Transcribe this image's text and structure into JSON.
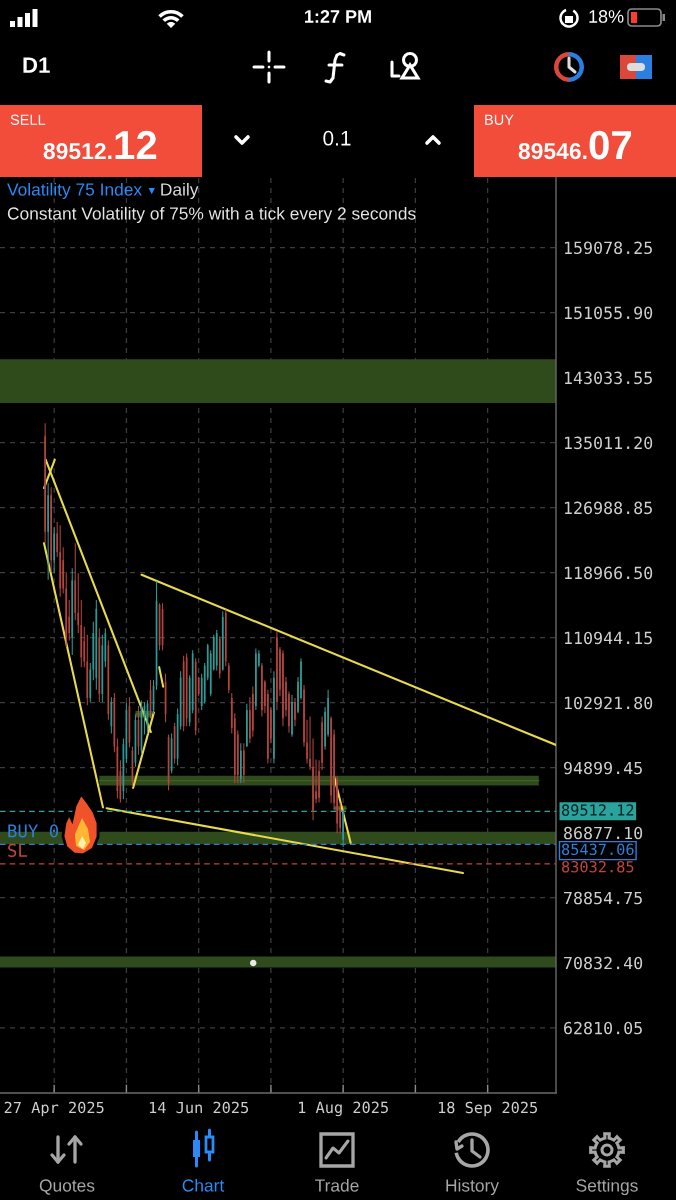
{
  "chart_data": {
    "type": "candlestick",
    "title": "Volatility 75 Index",
    "subtitle": "Constant Volatility of 75% with a tick every 2 seconds",
    "x": [
      "2025-04-24",
      "2025-04-25",
      "2025-04-26",
      "2025-04-27",
      "2025-04-28",
      "2025-04-29",
      "2025-04-30",
      "2025-05-01",
      "2025-05-02",
      "2025-05-03",
      "2025-05-04",
      "2025-05-05",
      "2025-05-06",
      "2025-05-07",
      "2025-05-08",
      "2025-05-09",
      "2025-05-10",
      "2025-05-11",
      "2025-05-12",
      "2025-05-13",
      "2025-05-14",
      "2025-05-15",
      "2025-05-16",
      "2025-05-17",
      "2025-05-18",
      "2025-05-19",
      "2025-05-20",
      "2025-05-21",
      "2025-05-22",
      "2025-05-23",
      "2025-05-24",
      "2025-05-25",
      "2025-05-26",
      "2025-05-27",
      "2025-05-28",
      "2025-05-29",
      "2025-05-30",
      "2025-05-31",
      "2025-06-01",
      "2025-06-02",
      "2025-06-03",
      "2025-06-04",
      "2025-06-05",
      "2025-06-06",
      "2025-06-07",
      "2025-06-08",
      "2025-06-09",
      "2025-06-10",
      "2025-06-11",
      "2025-06-12",
      "2025-06-13",
      "2025-06-14",
      "2025-06-15",
      "2025-06-16",
      "2025-06-17",
      "2025-06-18",
      "2025-06-19",
      "2025-06-20",
      "2025-06-21",
      "2025-06-22",
      "2025-06-23",
      "2025-06-24",
      "2025-06-25",
      "2025-06-26",
      "2025-06-27",
      "2025-06-28",
      "2025-06-29",
      "2025-06-30",
      "2025-07-01",
      "2025-07-02",
      "2025-07-03",
      "2025-07-04",
      "2025-07-05",
      "2025-07-06",
      "2025-07-07",
      "2025-07-08",
      "2025-07-09",
      "2025-07-10",
      "2025-07-11",
      "2025-07-12",
      "2025-07-13",
      "2025-07-14",
      "2025-07-15",
      "2025-07-16",
      "2025-07-17",
      "2025-07-18",
      "2025-07-19",
      "2025-07-20",
      "2025-07-21",
      "2025-07-22",
      "2025-07-23",
      "2025-07-24",
      "2025-07-25",
      "2025-07-26",
      "2025-07-27",
      "2025-07-28",
      "2025-07-29",
      "2025-07-30",
      "2025-07-31",
      "2025-08-01"
    ],
    "ohlc": [
      [
        135800,
        137400,
        122600,
        124000
      ],
      [
        124000,
        130000,
        118100,
        128500
      ],
      [
        128500,
        129500,
        119000,
        120500
      ],
      [
        120500,
        124600,
        118900,
        123800
      ],
      [
        123800,
        125200,
        120900,
        121500
      ],
      [
        121500,
        124800,
        116000,
        117000
      ],
      [
        120500,
        122100,
        116400,
        117000
      ],
      [
        117000,
        119000,
        109800,
        111000
      ],
      [
        113500,
        115600,
        110600,
        111500
      ],
      [
        111000,
        119500,
        108800,
        118000
      ],
      [
        118000,
        122600,
        113100,
        114000
      ],
      [
        114000,
        118900,
        111500,
        112500
      ],
      [
        112500,
        115600,
        107300,
        108500
      ],
      [
        110500,
        112300,
        107300,
        108000
      ],
      [
        108000,
        111300,
        102600,
        103500
      ],
      [
        103500,
        107800,
        103000,
        107000
      ],
      [
        107000,
        112900,
        105700,
        111500
      ],
      [
        106000,
        115600,
        104500,
        114500
      ],
      [
        111000,
        112100,
        103000,
        104000
      ],
      [
        104000,
        111300,
        103000,
        110000
      ],
      [
        108000,
        112100,
        107300,
        111500
      ],
      [
        110000,
        110600,
        100800,
        101500
      ],
      [
        100000,
        103600,
        99100,
        103000
      ],
      [
        103500,
        104100,
        96800,
        97500
      ],
      [
        97500,
        98500,
        91100,
        92000
      ],
      [
        94500,
        95800,
        90600,
        91000
      ],
      [
        92000,
        98500,
        91000,
        97800
      ],
      [
        96000,
        102900,
        95500,
        102000
      ],
      [
        102500,
        103600,
        97400,
        98000
      ],
      [
        97000,
        97500,
        92500,
        93200
      ],
      [
        95500,
        101400,
        95000,
        100800
      ],
      [
        100800,
        102500,
        96500,
        97500
      ],
      [
        97000,
        103200,
        96500,
        102500
      ],
      [
        101000,
        103000,
        99000,
        102500
      ],
      [
        100000,
        103200,
        99100,
        102800
      ],
      [
        104500,
        105700,
        101000,
        101800
      ],
      [
        102000,
        105700,
        101500,
        105000
      ],
      [
        105000,
        117900,
        104500,
        115500
      ],
      [
        115000,
        115200,
        109400,
        110000
      ],
      [
        114500,
        115200,
        109400,
        110000
      ],
      [
        105500,
        106500,
        100500,
        101500
      ],
      [
        98700,
        99000,
        92100,
        93000
      ],
      [
        94500,
        99100,
        94200,
        98500
      ],
      [
        100000,
        100400,
        95400,
        96000
      ],
      [
        96000,
        102200,
        95200,
        101500
      ],
      [
        100000,
        106800,
        99600,
        106000
      ],
      [
        108000,
        108700,
        99400,
        100000
      ],
      [
        108500,
        109000,
        100000,
        101000
      ],
      [
        100500,
        106300,
        100000,
        106000
      ],
      [
        102000,
        109400,
        101600,
        109000
      ],
      [
        108000,
        108400,
        98900,
        99500
      ],
      [
        106000,
        106100,
        103700,
        104000
      ],
      [
        102500,
        106500,
        102000,
        106000
      ],
      [
        103000,
        107800,
        102800,
        107500
      ],
      [
        106000,
        110200,
        105700,
        110000
      ],
      [
        104000,
        109400,
        103700,
        109000
      ],
      [
        107000,
        111300,
        106900,
        111000
      ],
      [
        107500,
        111900,
        106900,
        111500
      ],
      [
        110800,
        111100,
        105900,
        106500
      ],
      [
        107000,
        114200,
        106900,
        113500
      ],
      [
        114000,
        114400,
        107400,
        108000
      ],
      [
        107500,
        107800,
        104100,
        104500
      ],
      [
        103500,
        104100,
        99100,
        99800
      ],
      [
        101000,
        101600,
        93000,
        94000
      ],
      [
        99000,
        99500,
        93000,
        94000
      ],
      [
        93500,
        97900,
        93000,
        97000
      ],
      [
        97000,
        97900,
        93000,
        94000
      ],
      [
        97500,
        102800,
        97500,
        102000
      ],
      [
        102000,
        103600,
        97900,
        98500
      ],
      [
        104000,
        104900,
        98700,
        99500
      ],
      [
        102500,
        109600,
        102000,
        109000
      ],
      [
        107500,
        109400,
        107300,
        109000
      ],
      [
        107500,
        107800,
        101200,
        102000
      ],
      [
        105500,
        105700,
        101600,
        102500
      ],
      [
        104000,
        104500,
        95400,
        96000
      ],
      [
        102000,
        102400,
        97900,
        98500
      ],
      [
        96000,
        106800,
        95400,
        106000
      ],
      [
        111000,
        111700,
        102000,
        103000
      ],
      [
        109500,
        109800,
        103700,
        104500
      ],
      [
        109000,
        109400,
        100000,
        101000
      ],
      [
        105500,
        106100,
        101200,
        102000
      ],
      [
        104000,
        104300,
        99200,
        100000
      ],
      [
        99000,
        103900,
        98700,
        103000
      ],
      [
        103000,
        103500,
        100000,
        100800
      ],
      [
        101800,
        106100,
        101600,
        105500
      ],
      [
        103500,
        108400,
        103300,
        108000
      ],
      [
        104500,
        105100,
        97500,
        98000
      ],
      [
        98000,
        100800,
        95400,
        96000
      ],
      [
        96000,
        101200,
        94600,
        95000
      ],
      [
        95000,
        98500,
        88400,
        89500
      ],
      [
        92000,
        95900,
        90500,
        91000
      ],
      [
        94500,
        95800,
        90600,
        91200
      ],
      [
        100500,
        101200,
        94600,
        95500
      ],
      [
        97500,
        102400,
        97100,
        101800
      ],
      [
        99000,
        104500,
        98700,
        103500
      ],
      [
        101000,
        101200,
        90500,
        91500
      ],
      [
        99000,
        99600,
        89700,
        90500
      ],
      [
        93500,
        93800,
        86800,
        88000
      ],
      [
        90000,
        90500,
        86800,
        87500
      ],
      [
        86000,
        89600,
        85100,
        89500
      ]
    ],
    "colors": [
      "#b5443f",
      "#2e9a96",
      "#b5443f",
      "#2e9a96",
      "#b5443f",
      "#b5443f",
      "#b5443f",
      "#b5443f",
      "#b5443f",
      "#2e9a96",
      "#b5443f",
      "#b5443f",
      "#b5443f",
      "#b5443f",
      "#b5443f",
      "#2e9a96",
      "#2e9a96",
      "#2e9a96",
      "#b5443f",
      "#2e9a96",
      "#2e9a96",
      "#b5443f",
      "#2e9a96",
      "#b5443f",
      "#b5443f",
      "#b5443f",
      "#2e9a96",
      "#2e9a96",
      "#b5443f",
      "#b5443f",
      "#2e9a96",
      "#b5443f",
      "#2e9a96",
      "#2e9a96",
      "#2e9a96",
      "#b5443f",
      "#2e9a96",
      "#2e9a96",
      "#b5443f",
      "#b5443f",
      "#b5443f",
      "#b5443f",
      "#2e9a96",
      "#b5443f",
      "#2e9a96",
      "#2e9a96",
      "#b5443f",
      "#b5443f",
      "#2e9a96",
      "#2e9a96",
      "#b5443f",
      "#b5443f",
      "#2e9a96",
      "#2e9a96",
      "#2e9a96",
      "#2e9a96",
      "#2e9a96",
      "#2e9a96",
      "#b5443f",
      "#2e9a96",
      "#b5443f",
      "#b5443f",
      "#b5443f",
      "#b5443f",
      "#b5443f",
      "#2e9a96",
      "#b5443f",
      "#2e9a96",
      "#b5443f",
      "#b5443f",
      "#2e9a96",
      "#2e9a96",
      "#b5443f",
      "#b5443f",
      "#b5443f",
      "#b5443f",
      "#2e9a96",
      "#b5443f",
      "#b5443f",
      "#b5443f",
      "#b5443f",
      "#b5443f",
      "#2e9a96",
      "#b5443f",
      "#2e9a96",
      "#2e9a96",
      "#b5443f",
      "#b5443f",
      "#b5443f",
      "#b5443f",
      "#b5443f",
      "#b5443f",
      "#b5443f",
      "#2e9a96",
      "#2e9a96",
      "#b5443f",
      "#b5443f",
      "#b5443f",
      "#b5443f",
      "#2e9a96"
    ],
    "series": [
      {
        "type": "line",
        "color": "#e8da4c",
        "x": [
          "2025-04-24T04:00",
          "2025-05-29T03:00"
        ],
        "values": [
          132900,
          99300
        ]
      },
      {
        "type": "line",
        "color": "#e8da4c",
        "x": [
          "2025-05-23T05:00",
          "2025-05-30T03:00"
        ],
        "values": [
          92400,
          101700
        ]
      },
      {
        "type": "line",
        "color": "#e8da4c",
        "x": [
          "2025-04-23T15:00",
          "2025-04-27T05:00"
        ],
        "values": [
          129400,
          132900
        ]
      },
      {
        "type": "line",
        "color": "#e8da4c",
        "x": [
          "2025-04-23T15:00",
          "2025-05-13T05:00"
        ],
        "values": [
          122600,
          90000
        ]
      },
      {
        "type": "line",
        "color": "#e8da4c",
        "x": [
          "2025-05-14T10:00",
          "2025-09-09T19:00"
        ],
        "values": [
          89900,
          81900
        ]
      },
      {
        "type": "line",
        "color": "#e8da4c",
        "x": [
          "2025-05-26T01:00",
          "2025-10-10T17:00"
        ],
        "values": [
          118700,
          97700
        ]
      },
      {
        "type": "line",
        "color": "#e8da4c",
        "x": [
          "2025-07-29T00:00",
          "2025-08-03T12:00"
        ],
        "values": [
          93800,
          85600
        ]
      },
      {
        "type": "line",
        "color": "#e8da4c",
        "x": [
          "2025-05-31T21:00",
          "2025-06-02T05:00"
        ],
        "values": [
          107300,
          104900
        ]
      },
      {
        "type": "line",
        "color": "#3f6224",
        "x": [
          "2025-05-12",
          "2025-10-05"
        ],
        "values": [
          93300,
          93300
        ],
        "lower": [
          92700,
          92700
        ],
        "upper": [
          93900,
          93900
        ]
      },
      {
        "type": "line",
        "color": "#4a6a2a",
        "x": [
          "2025-05-24",
          "2025-05-30"
        ],
        "values": [
          101500,
          101500
        ],
        "lower": [
          101100,
          101100
        ],
        "upper": [
          101900,
          101900
        ]
      },
      {
        "type": "line",
        "color": "#4a6a2a",
        "x": [
          "2025-07-29",
          "2025-08-02"
        ],
        "values": [
          89900,
          89900
        ],
        "lower": [
          89600,
          89600
        ],
        "upper": [
          90200,
          90200
        ]
      },
      {
        "type": "scatter",
        "color": "#e8e8e8",
        "marker": "circle",
        "x": [
          "2025-07-02T03:00"
        ],
        "values": [
          70800
        ]
      }
    ],
    "xlim": [
      "2025-04-09",
      "2025-10-10T17:00"
    ],
    "xticks": [
      {
        "value": "2025-04-27",
        "label": "27 Apr 2025"
      },
      {
        "value": "2025-05-21",
        "label": null
      },
      {
        "value": "2025-06-14",
        "label": "14 Jun 2025"
      },
      {
        "value": "2025-07-08",
        "label": null
      },
      {
        "value": "2025-08-01",
        "label": "1 Aug 2025"
      },
      {
        "value": "2025-08-25",
        "label": null
      },
      {
        "value": "2025-09-18",
        "label": "18 Sep 2025"
      }
    ],
    "ylim": [
      54760,
      167900
    ],
    "yticks": [
      159078.25,
      {
        "value": 151055.9,
        "label": "151055.90"
      },
      143033.55,
      {
        "value": 135011.2,
        "label": "135011.20"
      },
      126988.85,
      {
        "value": 118966.5,
        "label": "118966.50"
      },
      110944.15,
      {
        "value": 102921.8,
        "label": "102921.80"
      },
      94899.45,
      {
        "value": 86877.1,
        "label": "86877.10"
      },
      78854.75,
      {
        "value": 70832.4,
        "label": "70832.40"
      },
      62810.05
    ],
    "grid": true,
    "bands": [
      {
        "axis": "y",
        "from": 139900,
        "to": 145300,
        "color": "#2f4a1b"
      },
      {
        "axis": "y",
        "from": 85450,
        "to": 87000,
        "color": "#2f4a1b"
      },
      {
        "axis": "y",
        "from": 70250,
        "to": 71600,
        "color": "#2f4a1b"
      }
    ],
    "ref_lines": [
      {
        "axis": "y",
        "value": 89512.12,
        "label": "89512.12",
        "color": "#2aa39c",
        "line_style": "dashed"
      },
      {
        "axis": "y",
        "value": 85437.06,
        "label": "85437.06",
        "color": "#2f7fd8",
        "line_style": "dashed"
      },
      {
        "axis": "y",
        "value": 83032.85,
        "label": "83032.85",
        "color": "#c2453c",
        "line_style": "dashed"
      }
    ],
    "annotations": [
      "1:27 PM",
      "18%",
      "D1",
      "SELL",
      "89512.",
      "12",
      "0.1",
      "BUY",
      "89546.",
      "07",
      "▾",
      "Daily",
      "Quotes",
      "Chart",
      "Trade",
      "History",
      "Settings",
      {
        "text": "BUY 0",
        "y": 85437.06
      },
      {
        "text": "SL",
        "y": 83032.85
      }
    ]
  }
}
